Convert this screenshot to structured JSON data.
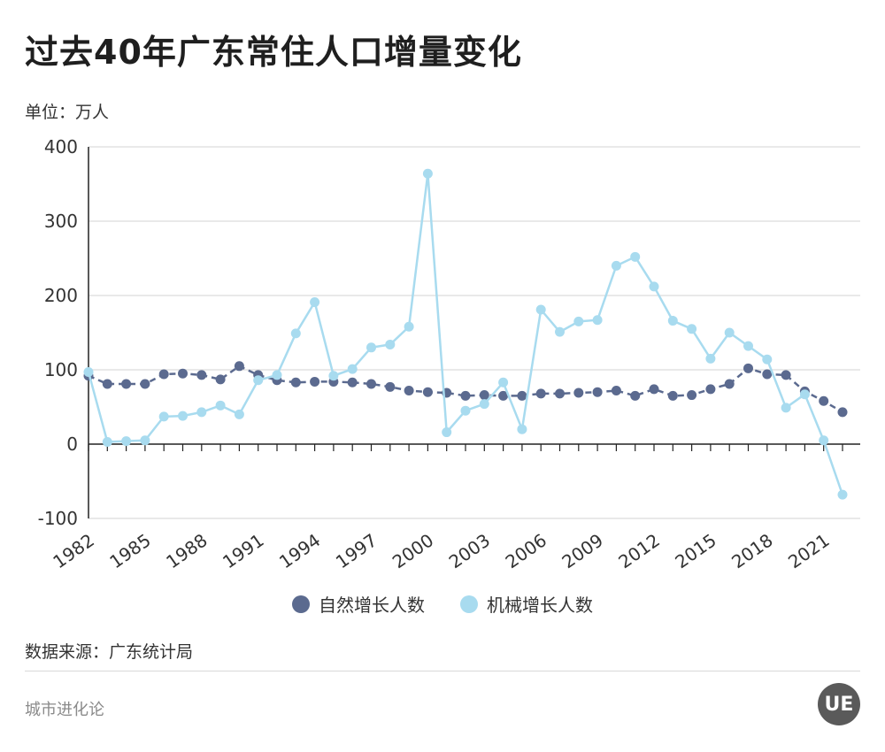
{
  "header": {
    "title": "过去40年广东常住人口增量变化",
    "unit": "单位：万人"
  },
  "footer": {
    "source": "数据来源：广东统计局",
    "brand": "城市进化论",
    "logo_text": "UE"
  },
  "colors": {
    "natural": "#5b6a8f",
    "migration": "#a8dbef",
    "grid": "#e2e2e2",
    "axis": "#222222"
  },
  "chart_data": {
    "type": "line",
    "x": [
      1982,
      1983,
      1984,
      1985,
      1986,
      1987,
      1988,
      1989,
      1990,
      1991,
      1992,
      1993,
      1994,
      1995,
      1996,
      1997,
      1998,
      1999,
      2000,
      2001,
      2002,
      2003,
      2004,
      2005,
      2006,
      2007,
      2008,
      2009,
      2010,
      2011,
      2012,
      2013,
      2014,
      2015,
      2016,
      2017,
      2018,
      2019,
      2020,
      2021,
      2022
    ],
    "xticks": [
      "1982",
      "1985",
      "1988",
      "1991",
      "1994",
      "1997",
      "2000",
      "2003",
      "2006",
      "2009",
      "2012",
      "2015",
      "2018",
      "2021"
    ],
    "yticks": [
      "400",
      "300",
      "200",
      "100",
      "0",
      "-100"
    ],
    "ylim": [
      -100,
      400
    ],
    "grid": true,
    "legend_position": "bottom-center",
    "series": [
      {
        "name": "自然增长人数",
        "values": [
          92,
          81,
          81,
          81,
          94,
          95,
          93,
          87,
          105,
          93,
          86,
          83,
          84,
          84,
          83,
          81,
          77,
          72,
          70,
          69,
          65,
          66,
          65,
          65,
          68,
          68,
          69,
          70,
          72,
          65,
          74,
          65,
          66,
          74,
          81,
          102,
          94,
          93,
          71,
          58,
          43
        ]
      },
      {
        "name": "机械增长人数",
        "values": [
          97,
          3,
          4,
          5,
          37,
          38,
          43,
          52,
          40,
          86,
          93,
          149,
          191,
          92,
          101,
          130,
          134,
          158,
          364,
          16,
          45,
          54,
          83,
          20,
          181,
          151,
          165,
          167,
          240,
          252,
          212,
          166,
          155,
          115,
          150,
          132,
          114,
          49,
          67,
          5,
          -68
        ]
      }
    ]
  }
}
